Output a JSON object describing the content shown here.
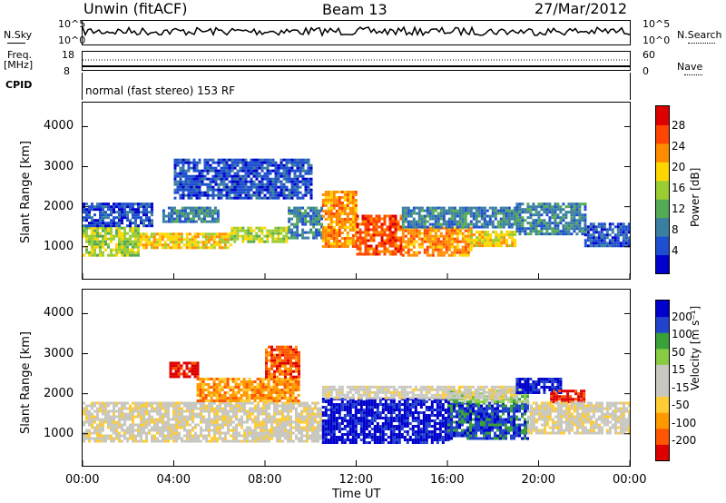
{
  "header": {
    "station": "Unwin (fitACF)",
    "beam": "Beam 13",
    "date": "27/Mar/2012"
  },
  "top_panels": {
    "nsky_label": "N.Sky",
    "nsky_ticks": [
      "10^5",
      "10^0"
    ],
    "nsearch_label": "N.Search",
    "nsearch_ticks": [
      "10^5",
      "10^0"
    ],
    "freq_label_1": "Freq.",
    "freq_label_2": "[MHz]",
    "freq_ticks": [
      "18",
      "8"
    ],
    "nave_label": "Nave",
    "nave_ticks": [
      "60",
      "0"
    ],
    "cpid_label": "CPID",
    "cpid_text": "normal (fast stereo) 153 RF"
  },
  "chart_data": [
    {
      "type": "heatmap",
      "name": "power",
      "xlabel": "Time UT",
      "ylabel": "Slant Range [km]",
      "xlim": [
        0,
        24
      ],
      "ylim": [
        200,
        4600
      ],
      "x_ticks": [
        "00:00",
        "04:00",
        "08:00",
        "12:00",
        "16:00",
        "20:00",
        "00:00"
      ],
      "y_ticks": [
        1000,
        2000,
        3000,
        4000
      ],
      "colorbar": {
        "label": "Power [dB]",
        "ticks": [
          "28",
          "24",
          "20",
          "16",
          "12",
          "8",
          "4"
        ],
        "colors": [
          "#0000cc",
          "#1e4fcf",
          "#3a7fa0",
          "#55aa55",
          "#9acd32",
          "#ffd700",
          "#ff8c00",
          "#ff4500",
          "#dd0000"
        ]
      },
      "regions": [
        {
          "t0": 0.0,
          "t1": 2.5,
          "r0": 800,
          "r1": 1500,
          "level": 4
        },
        {
          "t0": 0.0,
          "t1": 3.0,
          "r0": 1500,
          "r1": 2100,
          "level": 1
        },
        {
          "t0": 2.5,
          "t1": 6.5,
          "r0": 950,
          "r1": 1350,
          "level": 5
        },
        {
          "t0": 3.5,
          "t1": 6.0,
          "r0": 1600,
          "r1": 2000,
          "level": 2
        },
        {
          "t0": 6.5,
          "t1": 9.0,
          "r0": 1100,
          "r1": 1500,
          "level": 4
        },
        {
          "t0": 9.0,
          "t1": 10.5,
          "r0": 1200,
          "r1": 2000,
          "level": 2
        },
        {
          "t0": 10.5,
          "t1": 12.0,
          "r0": 1000,
          "r1": 2400,
          "level": 6
        },
        {
          "t0": 12.0,
          "t1": 14.0,
          "r0": 800,
          "r1": 1800,
          "level": 7
        },
        {
          "t0": 14.0,
          "t1": 17.0,
          "r0": 800,
          "r1": 1500,
          "level": 6
        },
        {
          "t0": 14.0,
          "t1": 19.0,
          "r0": 1500,
          "r1": 2000,
          "level": 2
        },
        {
          "t0": 17.0,
          "t1": 19.0,
          "r0": 1000,
          "r1": 1400,
          "level": 5
        },
        {
          "t0": 19.0,
          "t1": 22.0,
          "r0": 1300,
          "r1": 2100,
          "level": 2
        },
        {
          "t0": 22.0,
          "t1": 24.0,
          "r0": 1000,
          "r1": 1600,
          "level": 1
        },
        {
          "t0": 4.0,
          "t1": 10.0,
          "r0": 2200,
          "r1": 3200,
          "level": 1
        }
      ]
    },
    {
      "type": "heatmap",
      "name": "velocity",
      "xlabel": "Time UT",
      "ylabel": "Slant Range [km]",
      "xlim": [
        0,
        24
      ],
      "ylim": [
        200,
        4600
      ],
      "x_ticks": [
        "00:00",
        "04:00",
        "08:00",
        "12:00",
        "16:00",
        "20:00",
        "00:00"
      ],
      "y_ticks": [
        1000,
        2000,
        3000,
        4000
      ],
      "colorbar": {
        "label": "Velocity [m s⁻¹]",
        "ticks": [
          "200",
          "100",
          "50",
          "15",
          "-15",
          "-50",
          "-100",
          "-200"
        ],
        "colors": [
          "#dd0000",
          "#ff5500",
          "#ff9900",
          "#ffcc33",
          "#c8c8c0",
          "#c8c8c0",
          "#88cc44",
          "#3aa03a",
          "#2244cc",
          "#0000cc"
        ]
      },
      "regions": [
        {
          "t0": 0.0,
          "t1": 10.5,
          "r0": 800,
          "r1": 1800,
          "level": 4
        },
        {
          "t0": 3.8,
          "t1": 5.0,
          "r0": 2400,
          "r1": 2800,
          "level": 0
        },
        {
          "t0": 5.0,
          "t1": 9.5,
          "r0": 1800,
          "r1": 2400,
          "level": 2
        },
        {
          "t0": 8.0,
          "t1": 9.5,
          "r0": 2400,
          "r1": 3200,
          "level": 1
        },
        {
          "t0": 10.5,
          "t1": 16.0,
          "r0": 800,
          "r1": 1900,
          "level": 9
        },
        {
          "t0": 16.0,
          "t1": 19.5,
          "r0": 900,
          "r1": 1800,
          "level": 8
        },
        {
          "t0": 16.0,
          "t1": 19.5,
          "r0": 1800,
          "r1": 2100,
          "level": 6
        },
        {
          "t0": 10.5,
          "t1": 19.0,
          "r0": 1900,
          "r1": 2200,
          "level": 4
        },
        {
          "t0": 19.0,
          "t1": 21.0,
          "r0": 2000,
          "r1": 2400,
          "level": 9
        },
        {
          "t0": 20.5,
          "t1": 22.0,
          "r0": 1800,
          "r1": 2100,
          "level": 0
        },
        {
          "t0": 19.5,
          "t1": 24.0,
          "r0": 1000,
          "r1": 1800,
          "level": 4
        }
      ]
    }
  ]
}
